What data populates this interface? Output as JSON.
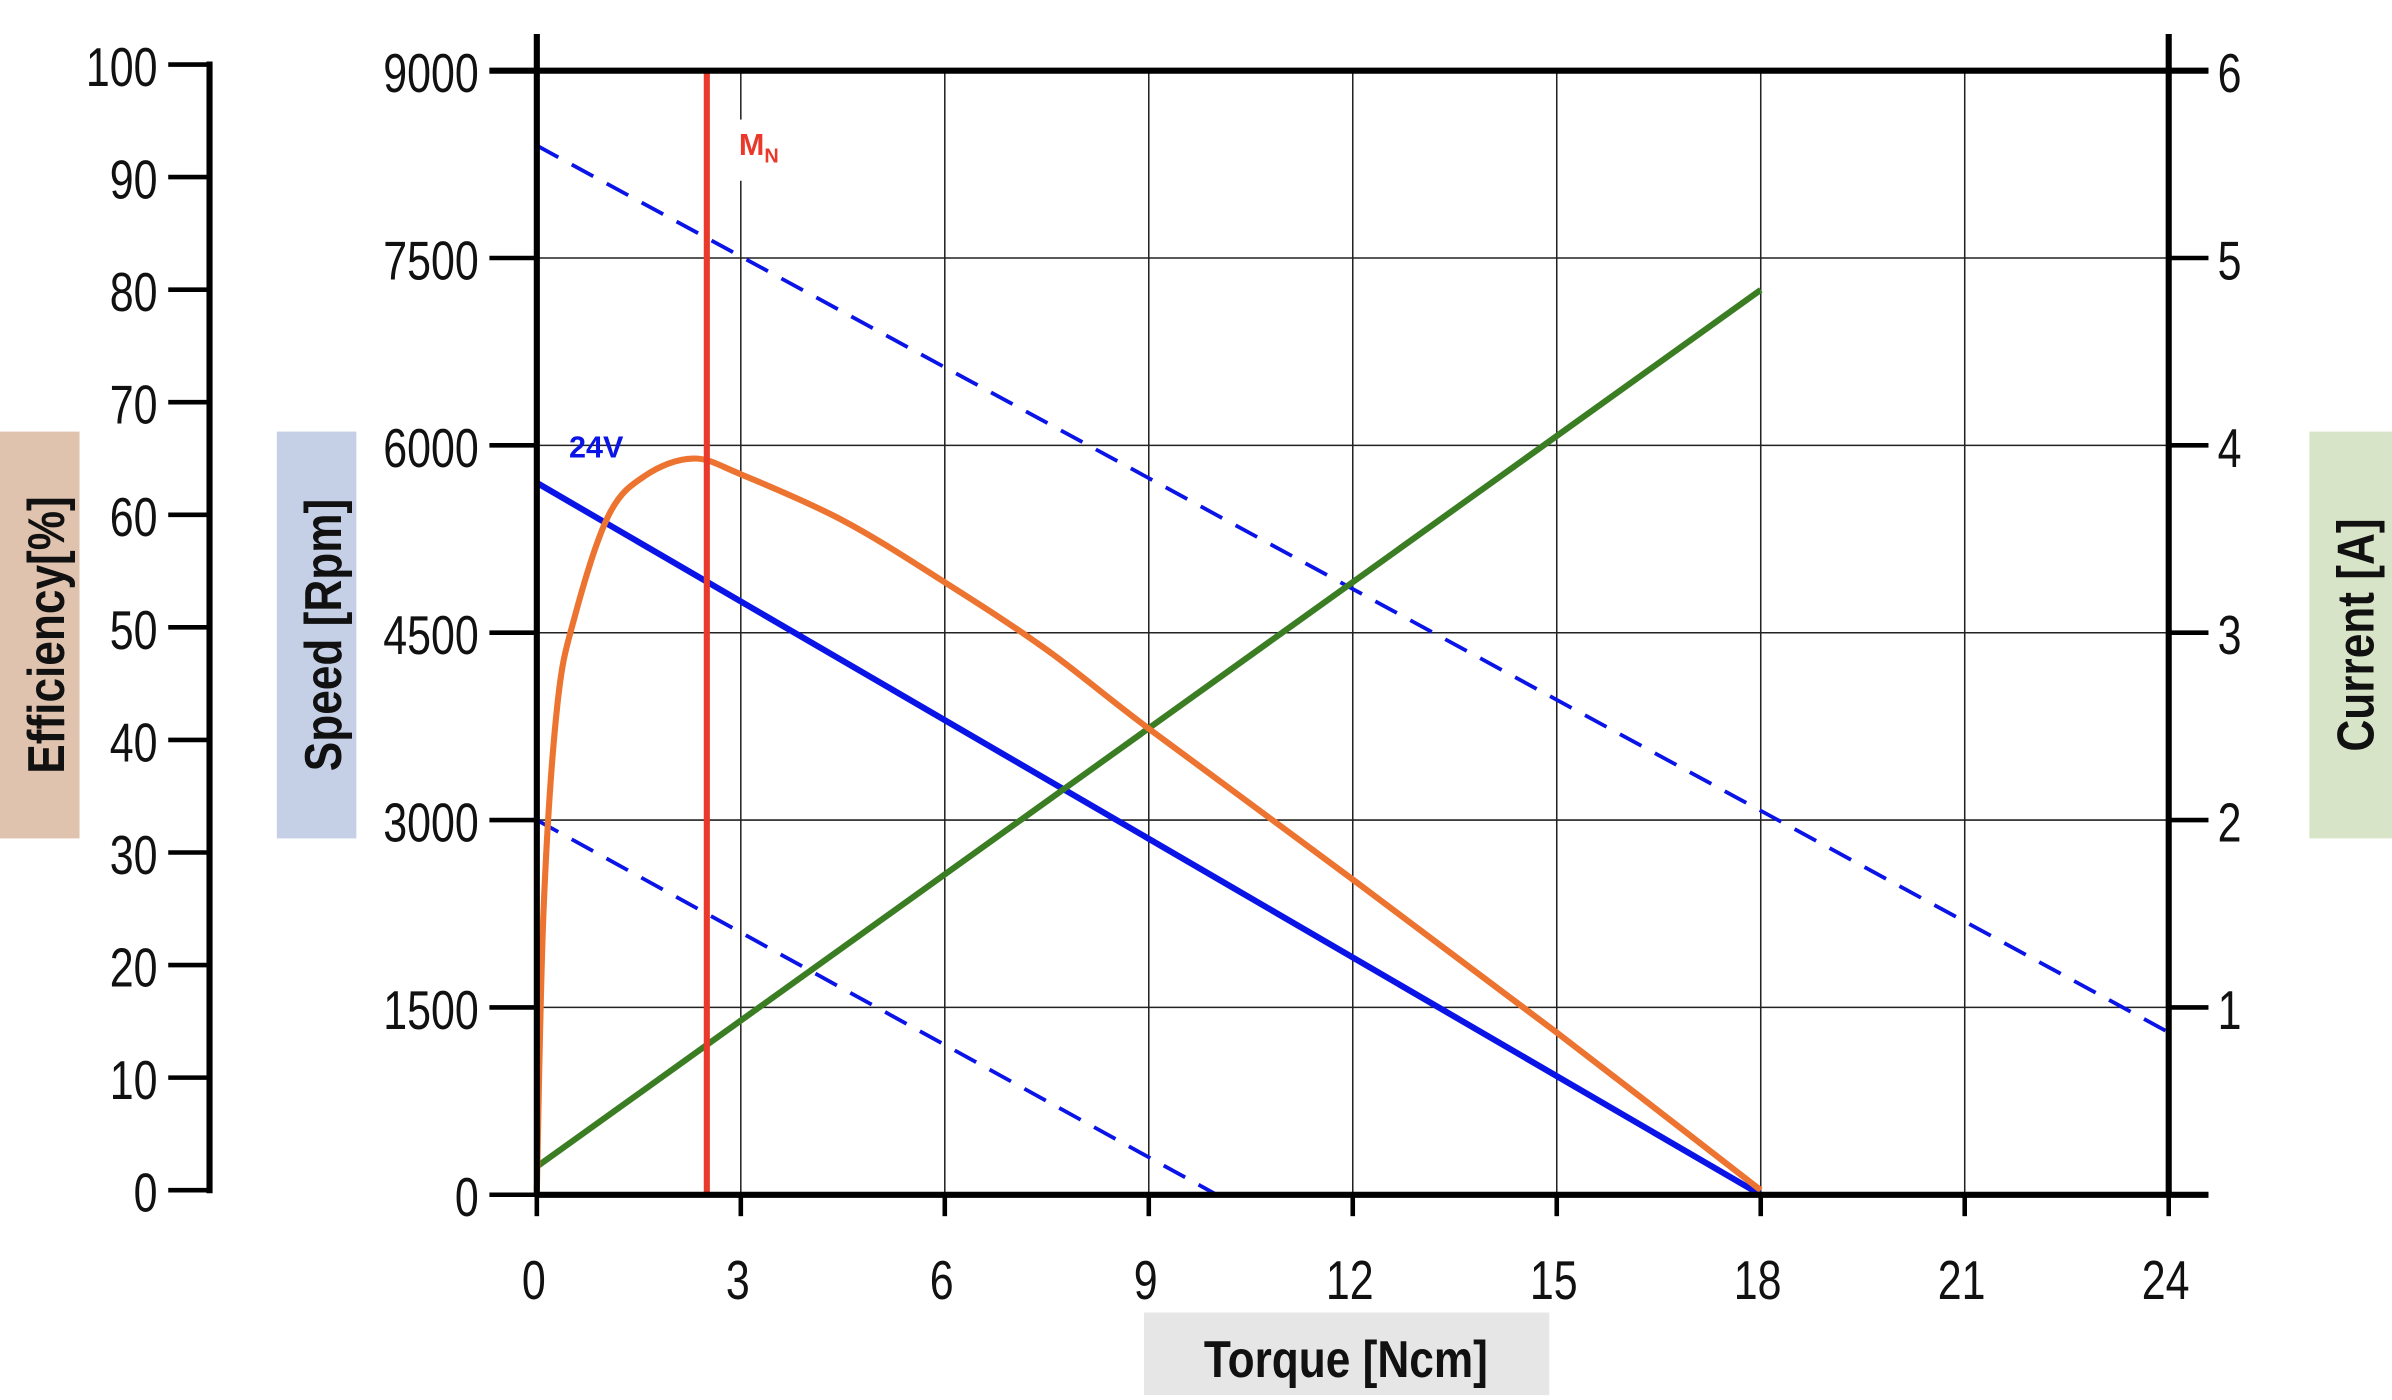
{
  "chart_data": {
    "type": "line",
    "xlabel": "Torque [Ncm]",
    "x_ticks": [
      "0",
      "3",
      "6",
      "9",
      "12",
      "15",
      "18",
      "21",
      "24"
    ],
    "xlim": [
      0,
      24
    ],
    "axes": {
      "efficiency": {
        "label": "Efficiency[%]",
        "ylim": [
          0,
          100
        ],
        "ticks": [
          "0",
          "10",
          "20",
          "30",
          "40",
          "50",
          "60",
          "70",
          "80",
          "90",
          "100"
        ],
        "label_bg": "#e0c3ae"
      },
      "speed": {
        "label": "Speed [Rpm]",
        "ylim": [
          0,
          9000
        ],
        "ticks": [
          "0",
          "1500",
          "3000",
          "4500",
          "6000",
          "7500",
          "9000"
        ],
        "label_bg": "#c5cfe6"
      },
      "current": {
        "label": "Current [A]",
        "ylim": [
          0,
          6
        ],
        "ticks": [
          "1",
          "2",
          "3",
          "4",
          "5",
          "6"
        ],
        "label_bg": "#d8e4c8"
      },
      "torque": {
        "label_bg": "#e6e6e6"
      }
    },
    "grid": true,
    "series": [
      {
        "axis": "speed",
        "color": "#0a14e6",
        "style": "solid",
        "label": "24V",
        "x": [
          0,
          18
        ],
        "y": [
          5700,
          0
        ]
      },
      {
        "axis": "speed",
        "color": "#0a14e6",
        "style": "dashed",
        "x": [
          0,
          24
        ],
        "y": [
          8400,
          1300
        ]
      },
      {
        "axis": "speed",
        "color": "#0a14e6",
        "style": "dashed",
        "x": [
          0,
          10
        ],
        "y": [
          3000,
          0
        ]
      },
      {
        "axis": "current",
        "color": "#3a7d22",
        "style": "solid",
        "x": [
          0,
          18
        ],
        "y": [
          0.15,
          4.83
        ]
      },
      {
        "axis": "efficiency",
        "color": "#ec7430",
        "style": "solid",
        "x": [
          0,
          0.1,
          0.3,
          0.56,
          1.06,
          1.6,
          2.3,
          3,
          4.5,
          6,
          7.5,
          9,
          12,
          15,
          18
        ],
        "y": [
          0,
          25,
          43,
          51,
          60,
          63.5,
          65,
          63.6,
          59.5,
          54,
          48,
          41,
          27.6,
          14,
          0
        ]
      }
    ],
    "markers": [
      {
        "label": "M",
        "subscript": "N",
        "x": 2.5,
        "color": "#e8392a"
      }
    ]
  }
}
